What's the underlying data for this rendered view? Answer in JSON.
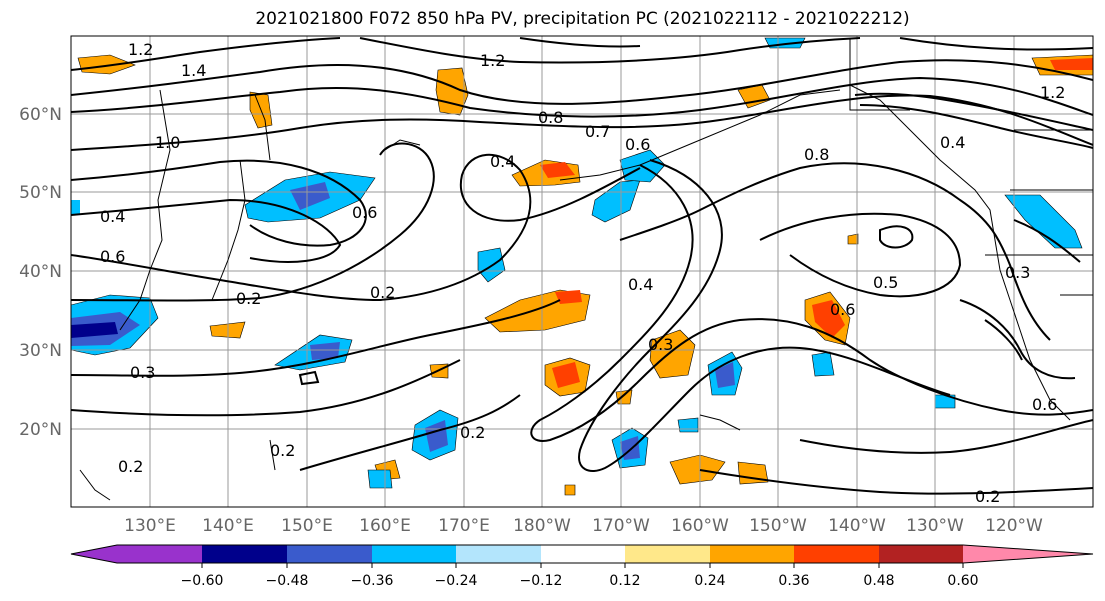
{
  "title": "2021021800 F072 850 hPa PV, precipitation PC (2021022112 - 2021022212)",
  "lat_labels": [
    "60°N",
    "50°N",
    "40°N",
    "30°N",
    "20°N"
  ],
  "lon_labels": [
    "130°E",
    "140°E",
    "150°E",
    "160°E",
    "170°E",
    "180°W",
    "170°W",
    "160°W",
    "150°W",
    "140°W",
    "130°W",
    "120°W"
  ],
  "contour_labels": [
    "1.4",
    "1.2",
    "0.8",
    "0.7",
    "0.6",
    "0.4",
    "0.2",
    "0.6",
    "0.8",
    "0.4",
    "0.5",
    "0.6",
    "0.3",
    "0.2",
    "0.3",
    "0.2",
    "0.6",
    "0.2",
    "0.4",
    "0.2",
    "0.3",
    "1.0",
    "0.6",
    "0.4",
    "0.2",
    "1.2",
    "1.2"
  ],
  "colorbar": {
    "tick_labels": [
      "−0.60",
      "−0.48",
      "−0.36",
      "−0.24",
      "−0.12",
      "0.12",
      "0.24",
      "0.36",
      "0.48",
      "0.60"
    ],
    "colors": [
      "#9932cc",
      "#00008b",
      "#3a5bcc",
      "#00bfff",
      "#b3e5fc",
      "#ffffff",
      "#ffe88a",
      "#ffa500",
      "#ff4000",
      "#b22222",
      "#ff88aa"
    ]
  }
}
